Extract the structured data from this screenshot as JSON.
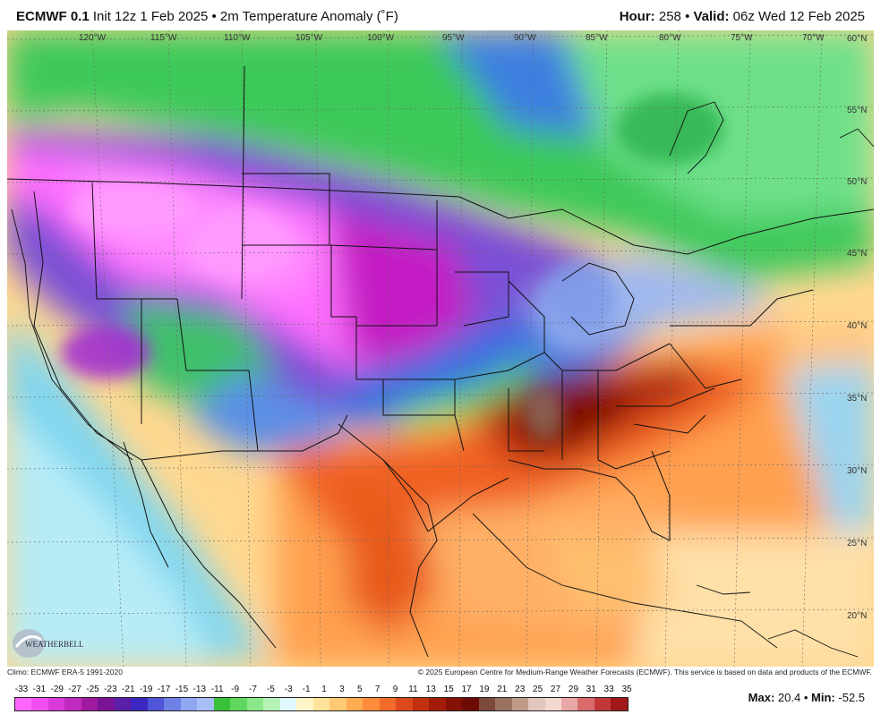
{
  "header": {
    "model": "ECMWF 0.1",
    "run_info": "Init 12z 1 Feb 2025 • 2m Temperature Anomaly (˚F)",
    "hour_label": "Hour:",
    "hour_value": "258",
    "valid_label": "Valid:",
    "valid_value": "06z Wed 12 Feb 2025"
  },
  "map": {
    "lon_labels": [
      "120°W",
      "115°W",
      "110°W",
      "105°W",
      "100°W",
      "95°W",
      "90°W",
      "85°W",
      "80°W",
      "75°W",
      "70°W"
    ],
    "lat_labels": [
      "60°N",
      "55°N",
      "50°N",
      "45°N",
      "40°N",
      "35°N",
      "30°N",
      "25°N",
      "20°N"
    ]
  },
  "footer": {
    "climo": "Climo: ECMWF ERA-5 1991-2020",
    "copyright": "© 2025 European Centre for Medium-Range Weather Forecasts (ECMWF). This service is based on data and products of the ECMWF.",
    "logo_text": "WeatherBELL"
  },
  "scale": {
    "labels": [
      "-33",
      "-31",
      "-29",
      "-27",
      "-25",
      "-23",
      "-21",
      "-19",
      "-17",
      "-15",
      "-13",
      "-11",
      "-9",
      "-7",
      "-5",
      "-3",
      "-1",
      "1",
      "3",
      "5",
      "7",
      "9",
      "11",
      "13",
      "15",
      "17",
      "19",
      "21",
      "23",
      "25",
      "27",
      "29",
      "31",
      "33",
      "35"
    ],
    "colors": [
      "#ff66ff",
      "#f04ef0",
      "#d93ad9",
      "#c02ac0",
      "#a01aa0",
      "#7a1496",
      "#5a1ea8",
      "#3c28c0",
      "#4f55d6",
      "#6f80e6",
      "#8fa6f0",
      "#a8bff5",
      "#39c239",
      "#5fd75f",
      "#8ae88a",
      "#b7f2b7",
      "#e0f7ff",
      "#fff4c8",
      "#ffe39a",
      "#ffc873",
      "#ffab52",
      "#ff8c3a",
      "#f26b2a",
      "#dc4a1c",
      "#c23012",
      "#a31c0a",
      "#851006",
      "#6d0a04",
      "#7b4a3a",
      "#9a7260",
      "#c09a88",
      "#e2c7bc",
      "#f3d8d0",
      "#e9a6a6",
      "#d86a6a",
      "#c23838",
      "#a01818"
    ]
  },
  "stats": {
    "max_label": "Max:",
    "max_value": "20.4",
    "min_label": "Min:",
    "min_value": "-52.5"
  }
}
